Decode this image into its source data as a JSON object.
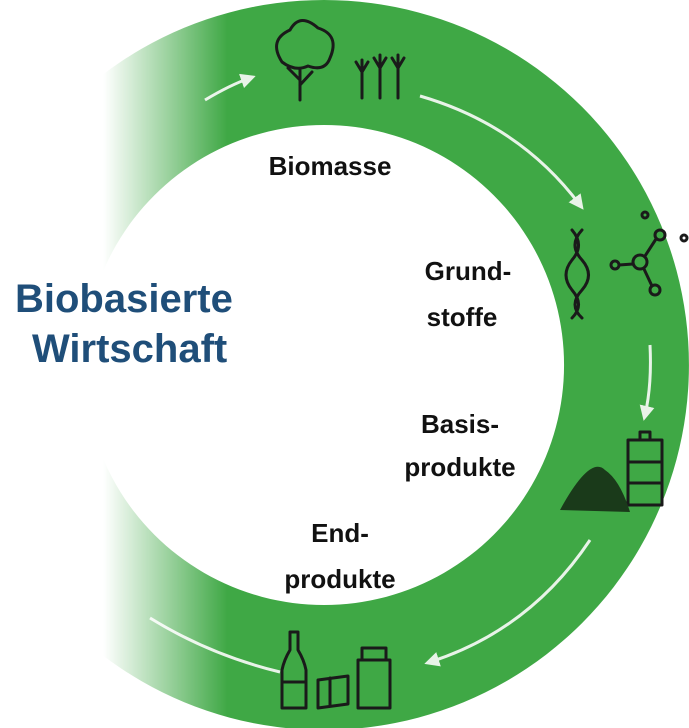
{
  "title": {
    "lines": [
      "Biobasierte",
      "Wirtschaft"
    ]
  },
  "stages": [
    {
      "lines": [
        "Biomasse"
      ]
    },
    {
      "lines": [
        "Grund-",
        "stoffe"
      ]
    },
    {
      "lines": [
        "Basis-",
        "produkte"
      ]
    },
    {
      "lines": [
        "End-",
        "produkte"
      ]
    }
  ]
}
